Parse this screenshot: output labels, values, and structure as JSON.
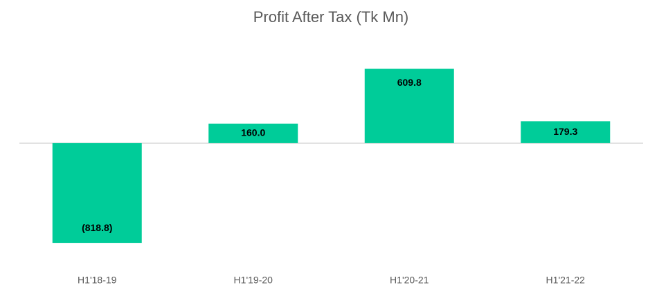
{
  "chart_data": {
    "type": "bar",
    "title": "Profit After Tax (Tk Mn)",
    "categories": [
      "H1'18-19",
      "H1'19-20",
      "H1'20-21",
      "H1'21-22"
    ],
    "values": [
      -818.8,
      160.0,
      609.8,
      179.3
    ],
    "value_labels": [
      "(818.8)",
      "160.0",
      "609.8",
      "179.3"
    ],
    "color": "#00cc99",
    "ylim": [
      -1000,
      800
    ]
  }
}
